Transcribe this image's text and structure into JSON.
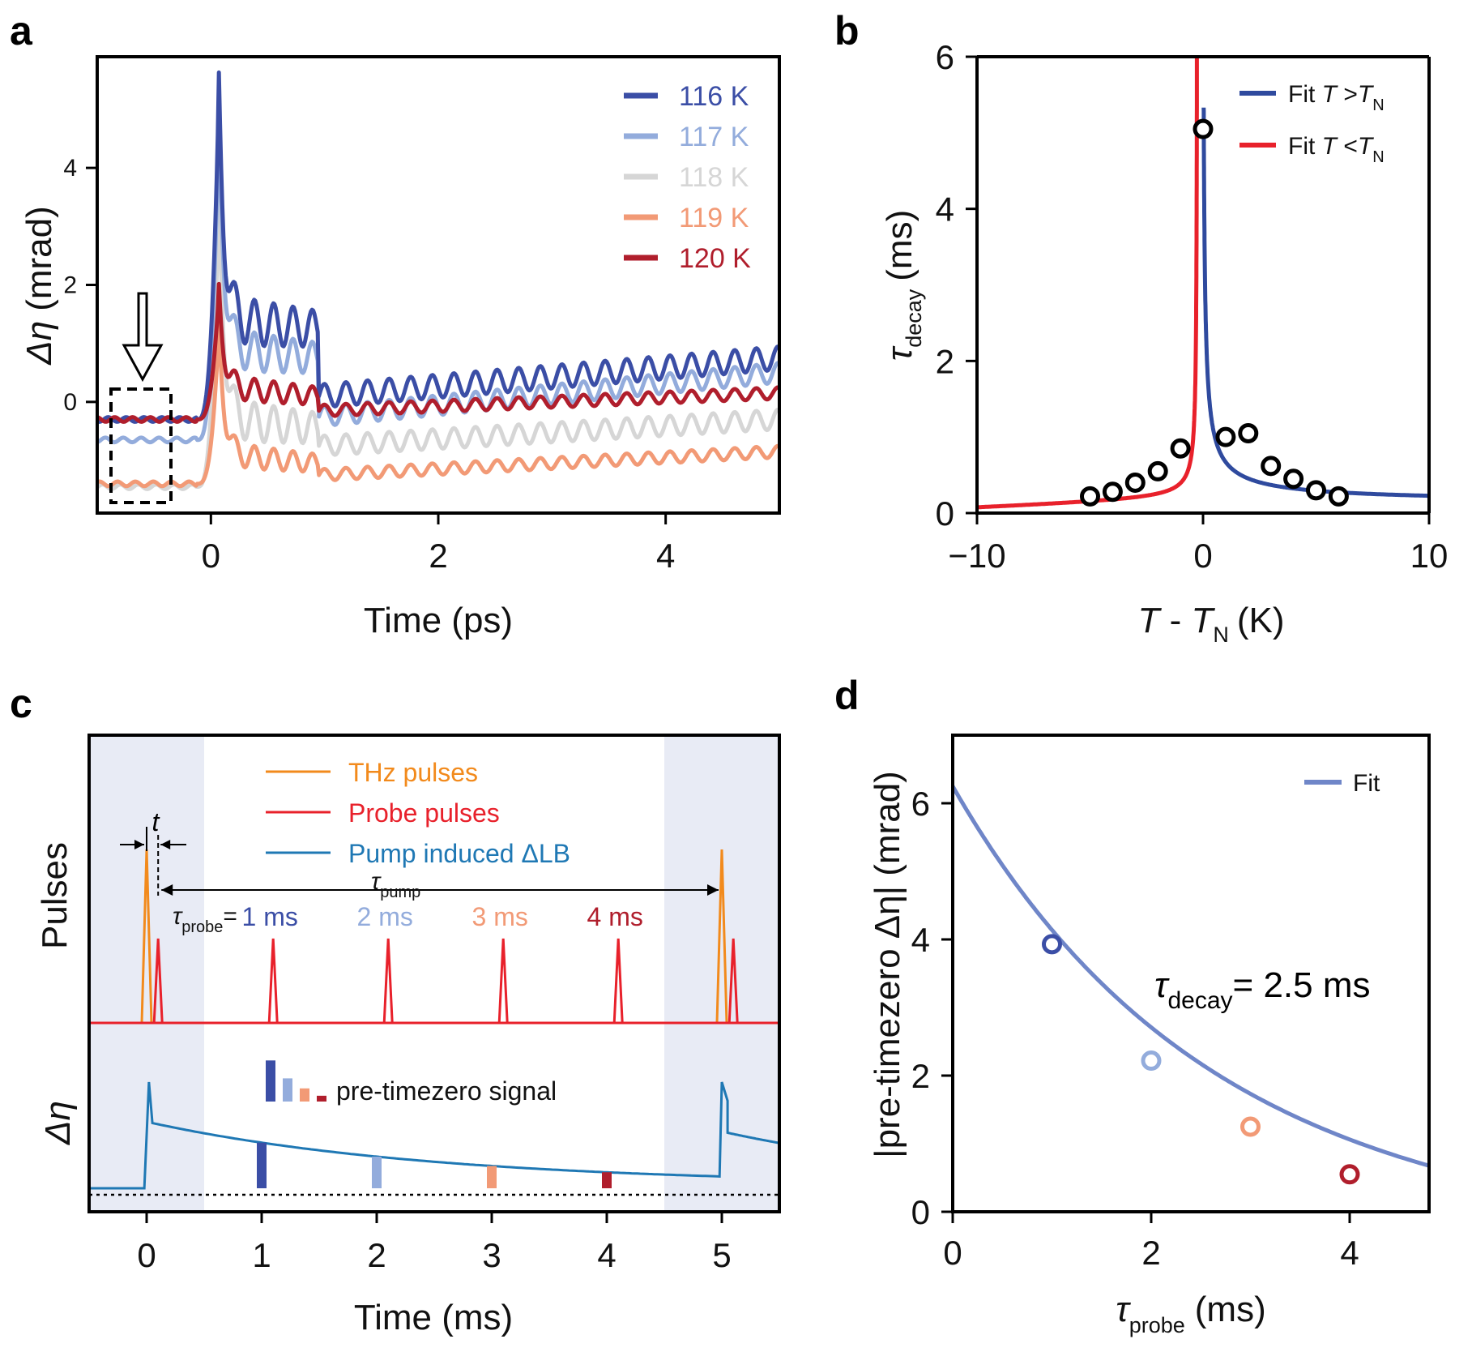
{
  "panels": {
    "a": "a",
    "b": "b",
    "c": "c",
    "d": "d"
  },
  "chart_data": [
    {
      "panel": "a",
      "type": "line",
      "xlabel": "Time (ps)",
      "ylabel_symbol": "Δη",
      "ylabel_unit": "(mrad)",
      "xlim": [
        -1.0,
        5.0
      ],
      "ylim": [
        -1.9,
        5.9
      ],
      "xticks": [
        0,
        2,
        4
      ],
      "yticks": [
        0,
        2,
        4
      ],
      "series": [
        {
          "name": "116 K",
          "color": "#3b4ea6",
          "pre": -0.3,
          "peak": 5.4,
          "early": 1.4,
          "late": 0.1,
          "end": 0.75,
          "amp": 0.2
        },
        {
          "name": "117 K",
          "color": "#93acdc",
          "pre": -0.65,
          "peak": 4.8,
          "early": 0.9,
          "late": -0.25,
          "end": 0.5,
          "amp": 0.17
        },
        {
          "name": "118 K",
          "color": "#d6d6d6",
          "pre": -1.45,
          "peak": 3.5,
          "early": -0.3,
          "late": -0.75,
          "end": -0.3,
          "amp": 0.17
        },
        {
          "name": "119 K",
          "color": "#f29a76",
          "pre": -1.4,
          "peak": 1.3,
          "early": -0.9,
          "late": -1.25,
          "end": -0.85,
          "amp": 0.1
        },
        {
          "name": "120 K",
          "color": "#b01e2c",
          "pre": -0.3,
          "peak": 1.9,
          "early": 0.25,
          "late": -0.15,
          "end": 0.15,
          "amp": 0.1
        }
      ]
    },
    {
      "panel": "b",
      "type": "scatter",
      "xlabel_symbol": "T",
      "xlabel_sep": " - ",
      "xlabel_sub": "N",
      "xlabel_unit": "(K)",
      "ylabel_symbol": "τ",
      "ylabel_sub": "decay",
      "ylabel_unit": "(ms)",
      "xlim": [
        -10,
        10
      ],
      "ylim": [
        0,
        6
      ],
      "xticks": [
        -10,
        0,
        10
      ],
      "xtick_labels": [
        "−10",
        "0",
        "10"
      ],
      "yticks": [
        0,
        2,
        4,
        6
      ],
      "points": {
        "x": [
          -5,
          -4,
          -3,
          -2,
          -1,
          0,
          1,
          2,
          3,
          4,
          5,
          6
        ],
        "y": [
          0.22,
          0.28,
          0.4,
          0.55,
          0.85,
          5.05,
          1.0,
          1.05,
          0.62,
          0.45,
          0.3,
          0.22
        ]
      },
      "fits": [
        {
          "name": "Fit T > T_N",
          "text": "Fit",
          "sym": "T",
          "op": " >",
          "sub": "N",
          "color": "#2f4a9e",
          "side": "above"
        },
        {
          "name": "Fit T < T_N",
          "text": "Fit",
          "sym": "T",
          "op": " <",
          "sub": "N",
          "color": "#e8212b",
          "side": "below"
        }
      ]
    },
    {
      "panel": "c",
      "type": "line",
      "xlabel": "Time (ms)",
      "ylabel_top": "Pulses",
      "ylabel_bottom": "Δη",
      "xlim": [
        -0.5,
        5.5
      ],
      "xticks": [
        0,
        1,
        2,
        3,
        4,
        5
      ],
      "shaded_regions": [
        [
          -0.5,
          0.5
        ],
        [
          4.5,
          5.5
        ]
      ],
      "legend": [
        {
          "label": "THz pulses",
          "color": "#f28a1c"
        },
        {
          "label": "Probe pulses",
          "color": "#e8212b"
        },
        {
          "label": "Pump induced ΔLB",
          "color": "#1f78b4"
        }
      ],
      "thz_pulses": [
        0,
        5
      ],
      "probe_pulses": [
        0.1,
        1.1,
        2.1,
        3.1,
        4.1,
        5.1
      ],
      "t_label": "t",
      "tau_pump_symbol": "τ",
      "tau_pump_sub": "pump",
      "tau_probe_symbol": "τ",
      "tau_probe_sub": "probe",
      "tau_probe_eq": "=",
      "probe_labels": [
        {
          "text": "1 ms",
          "color": "#3b4ea6"
        },
        {
          "text": "2 ms",
          "color": "#93acdc"
        },
        {
          "text": "3 ms",
          "color": "#f29a76"
        },
        {
          "text": "4 ms",
          "color": "#b01e2c"
        }
      ],
      "pretimezero_label": "pre-timezero signal",
      "signal_bars": [
        {
          "x": 1,
          "value": 3.9,
          "color": "#3b4ea6"
        },
        {
          "x": 2,
          "value": 2.2,
          "color": "#93acdc"
        },
        {
          "x": 3,
          "value": 1.25,
          "color": "#f29a76"
        },
        {
          "x": 4,
          "value": 0.55,
          "color": "#b01e2c"
        }
      ],
      "decay_ms": 2.5
    },
    {
      "panel": "d",
      "type": "scatter",
      "xlabel_symbol": "τ",
      "xlabel_sub": "probe",
      "xlabel_unit": "(ms)",
      "ylabel": "|pre-timezero Δη| (mrad)",
      "xlim": [
        0,
        4.8
      ],
      "ylim": [
        0,
        7
      ],
      "xticks": [
        0,
        2,
        4
      ],
      "yticks": [
        0,
        2,
        4,
        6
      ],
      "points": {
        "x": [
          1,
          2,
          3,
          4
        ],
        "y": [
          3.93,
          2.22,
          1.25,
          0.55
        ],
        "colors": [
          "#3b4ea6",
          "#93acdc",
          "#f29a76",
          "#b01e2c"
        ]
      },
      "fit": {
        "name": "Fit",
        "color": "#6f86c8",
        "A": 6.25,
        "tau": 2.5
      },
      "annotation_symbol": "τ",
      "annotation_sub": "decay",
      "annotation_value": "= 2.5 ms"
    }
  ]
}
